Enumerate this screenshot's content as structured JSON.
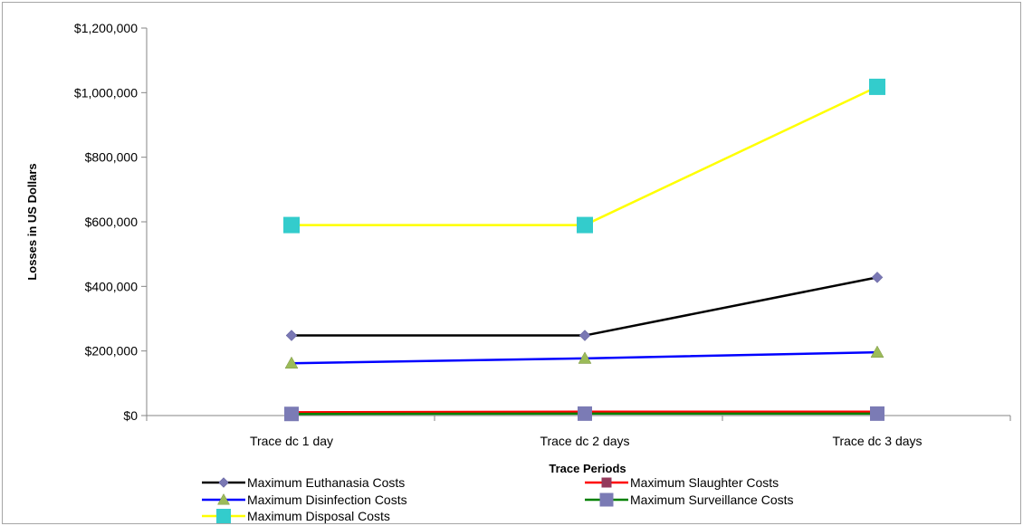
{
  "chart_data": {
    "type": "line",
    "title": "",
    "xlabel": "Trace Periods",
    "ylabel": "Losses in US Dollars",
    "ylim": [
      0,
      1200000
    ],
    "y_ticks": [
      0,
      200000,
      400000,
      600000,
      800000,
      1000000,
      1200000
    ],
    "y_tick_labels": [
      "$0",
      "$200,000",
      "$400,000",
      "$600,000",
      "$800,000",
      "$1,000,000",
      "$1,200,000"
    ],
    "grid": false,
    "legend_position": "bottom",
    "categories": [
      "Trace dc 1 day",
      "Trace dc 2 days",
      "Trace dc 3 days"
    ],
    "series": [
      {
        "name": "Maximum Euthanasia Costs",
        "values": [
          248000,
          248000,
          428000
        ],
        "line_color": "#000000",
        "marker": "diamond",
        "marker_color": "#7a78b4"
      },
      {
        "name": "Maximum Slaughter Costs",
        "values": [
          10000,
          12000,
          12000
        ],
        "line_color": "#ff0000",
        "marker": "square",
        "marker_color": "#943a5c"
      },
      {
        "name": "Maximum Disinfection Costs",
        "values": [
          162000,
          177000,
          196000
        ],
        "line_color": "#0000ff",
        "marker": "triangle",
        "marker_color": "#9bbb59"
      },
      {
        "name": "Maximum Surveillance Costs",
        "values": [
          5000,
          6000,
          6000
        ],
        "line_color": "#008000",
        "marker": "square",
        "marker_color": "#7b7bb5"
      },
      {
        "name": "Maximum Disposal Costs",
        "values": [
          590000,
          590000,
          1018000
        ],
        "line_color": "#ffff00",
        "marker": "square",
        "marker_color": "#33cccc"
      }
    ]
  }
}
